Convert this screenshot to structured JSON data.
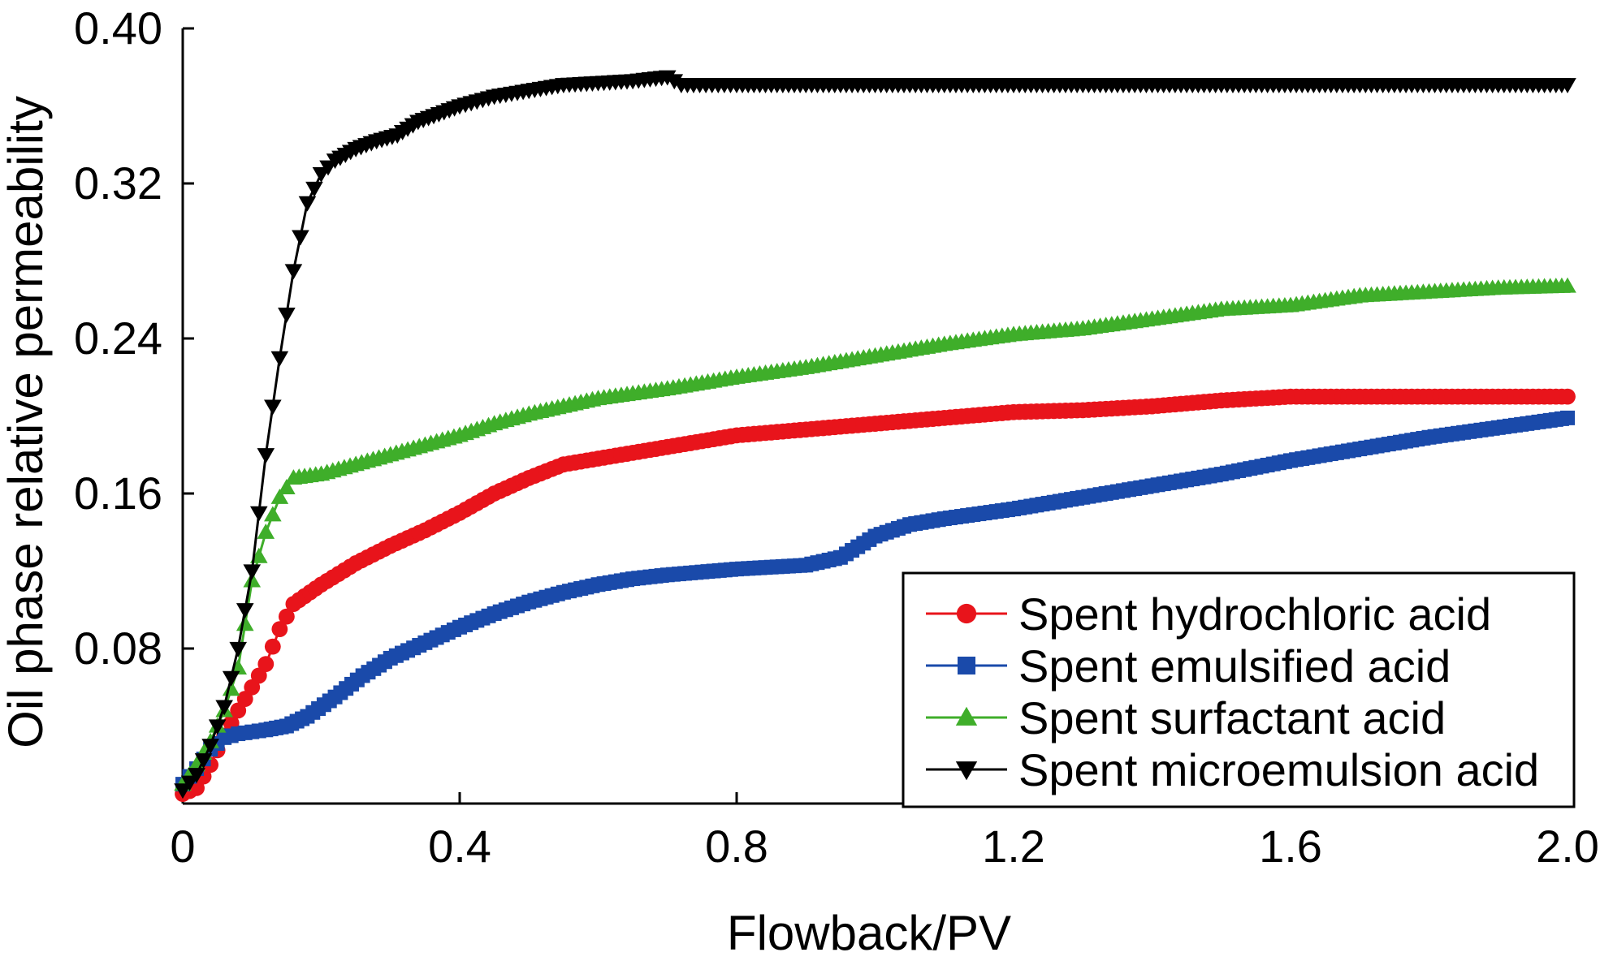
{
  "chart_data": {
    "type": "line",
    "title": "",
    "xlabel": "Flowback/PV",
    "ylabel": "Oil phase relative permeability",
    "xlim": [
      0,
      2.0
    ],
    "ylim": [
      0,
      0.4
    ],
    "x_ticks": [
      0,
      0.4,
      0.8,
      1.2,
      1.6,
      2.0
    ],
    "x_tick_labels": [
      "0",
      "0.4",
      "0.8",
      "1.2",
      "1.6",
      "2.0"
    ],
    "y_ticks": [
      0.08,
      0.16,
      0.24,
      0.32,
      0.4
    ],
    "y_tick_labels": [
      "0.08",
      "0.16",
      "0.24",
      "0.32",
      "0.40"
    ],
    "grid": false,
    "legend_position": "bottom-right",
    "series": [
      {
        "name": "Spent hydrochloric acid",
        "color": "#e8141b",
        "marker": "circle",
        "points": [
          [
            0.0,
            0.005
          ],
          [
            0.02,
            0.008
          ],
          [
            0.04,
            0.02
          ],
          [
            0.06,
            0.035
          ],
          [
            0.08,
            0.048
          ],
          [
            0.1,
            0.06
          ],
          [
            0.12,
            0.072
          ],
          [
            0.14,
            0.09
          ],
          [
            0.16,
            0.103
          ],
          [
            0.2,
            0.113
          ],
          [
            0.25,
            0.124
          ],
          [
            0.3,
            0.133
          ],
          [
            0.35,
            0.141
          ],
          [
            0.4,
            0.15
          ],
          [
            0.45,
            0.16
          ],
          [
            0.5,
            0.168
          ],
          [
            0.55,
            0.175
          ],
          [
            0.6,
            0.178
          ],
          [
            0.7,
            0.184
          ],
          [
            0.8,
            0.19
          ],
          [
            0.9,
            0.193
          ],
          [
            1.0,
            0.196
          ],
          [
            1.1,
            0.199
          ],
          [
            1.2,
            0.202
          ],
          [
            1.3,
            0.203
          ],
          [
            1.4,
            0.205
          ],
          [
            1.5,
            0.208
          ],
          [
            1.6,
            0.21
          ],
          [
            1.7,
            0.21
          ],
          [
            1.8,
            0.21
          ],
          [
            1.9,
            0.21
          ],
          [
            2.0,
            0.21
          ]
        ]
      },
      {
        "name": "Spent emulsified acid",
        "color": "#1a4aaa",
        "marker": "square",
        "points": [
          [
            0.0,
            0.01
          ],
          [
            0.02,
            0.018
          ],
          [
            0.04,
            0.028
          ],
          [
            0.06,
            0.034
          ],
          [
            0.08,
            0.036
          ],
          [
            0.1,
            0.037
          ],
          [
            0.12,
            0.038
          ],
          [
            0.15,
            0.04
          ],
          [
            0.18,
            0.045
          ],
          [
            0.22,
            0.055
          ],
          [
            0.26,
            0.066
          ],
          [
            0.3,
            0.075
          ],
          [
            0.35,
            0.083
          ],
          [
            0.4,
            0.091
          ],
          [
            0.45,
            0.098
          ],
          [
            0.5,
            0.104
          ],
          [
            0.55,
            0.109
          ],
          [
            0.6,
            0.113
          ],
          [
            0.65,
            0.116
          ],
          [
            0.7,
            0.118
          ],
          [
            0.8,
            0.121
          ],
          [
            0.9,
            0.123
          ],
          [
            0.95,
            0.127
          ],
          [
            1.0,
            0.138
          ],
          [
            1.05,
            0.144
          ],
          [
            1.1,
            0.147
          ],
          [
            1.2,
            0.152
          ],
          [
            1.3,
            0.158
          ],
          [
            1.4,
            0.164
          ],
          [
            1.5,
            0.17
          ],
          [
            1.6,
            0.177
          ],
          [
            1.7,
            0.183
          ],
          [
            1.8,
            0.189
          ],
          [
            1.9,
            0.194
          ],
          [
            2.0,
            0.199
          ]
        ]
      },
      {
        "name": "Spent surfactant acid",
        "color": "#3fae2a",
        "marker": "triangle-up",
        "points": [
          [
            0.0,
            0.01
          ],
          [
            0.02,
            0.02
          ],
          [
            0.04,
            0.032
          ],
          [
            0.06,
            0.048
          ],
          [
            0.08,
            0.07
          ],
          [
            0.1,
            0.115
          ],
          [
            0.12,
            0.14
          ],
          [
            0.14,
            0.158
          ],
          [
            0.16,
            0.168
          ],
          [
            0.2,
            0.17
          ],
          [
            0.25,
            0.175
          ],
          [
            0.3,
            0.18
          ],
          [
            0.35,
            0.185
          ],
          [
            0.4,
            0.19
          ],
          [
            0.45,
            0.196
          ],
          [
            0.5,
            0.201
          ],
          [
            0.55,
            0.205
          ],
          [
            0.6,
            0.209
          ],
          [
            0.7,
            0.214
          ],
          [
            0.8,
            0.22
          ],
          [
            0.9,
            0.225
          ],
          [
            1.0,
            0.231
          ],
          [
            1.1,
            0.237
          ],
          [
            1.2,
            0.242
          ],
          [
            1.3,
            0.245
          ],
          [
            1.4,
            0.25
          ],
          [
            1.5,
            0.255
          ],
          [
            1.6,
            0.257
          ],
          [
            1.7,
            0.262
          ],
          [
            1.8,
            0.264
          ],
          [
            1.9,
            0.266
          ],
          [
            2.0,
            0.267
          ]
        ]
      },
      {
        "name": "Spent microemulsion acid",
        "color": "#000000",
        "marker": "triangle-down",
        "points": [
          [
            0.0,
            0.007
          ],
          [
            0.02,
            0.015
          ],
          [
            0.04,
            0.03
          ],
          [
            0.06,
            0.05
          ],
          [
            0.08,
            0.08
          ],
          [
            0.1,
            0.12
          ],
          [
            0.12,
            0.18
          ],
          [
            0.14,
            0.23
          ],
          [
            0.16,
            0.275
          ],
          [
            0.18,
            0.31
          ],
          [
            0.2,
            0.325
          ],
          [
            0.22,
            0.332
          ],
          [
            0.25,
            0.338
          ],
          [
            0.28,
            0.342
          ],
          [
            0.31,
            0.345
          ],
          [
            0.34,
            0.352
          ],
          [
            0.37,
            0.356
          ],
          [
            0.4,
            0.36
          ],
          [
            0.45,
            0.365
          ],
          [
            0.5,
            0.368
          ],
          [
            0.55,
            0.371
          ],
          [
            0.6,
            0.372
          ],
          [
            0.65,
            0.373
          ],
          [
            0.7,
            0.375
          ],
          [
            0.72,
            0.371
          ],
          [
            0.8,
            0.371
          ],
          [
            1.0,
            0.371
          ],
          [
            1.2,
            0.371
          ],
          [
            1.4,
            0.371
          ],
          [
            1.6,
            0.371
          ],
          [
            1.8,
            0.371
          ],
          [
            2.0,
            0.371
          ]
        ]
      }
    ]
  }
}
